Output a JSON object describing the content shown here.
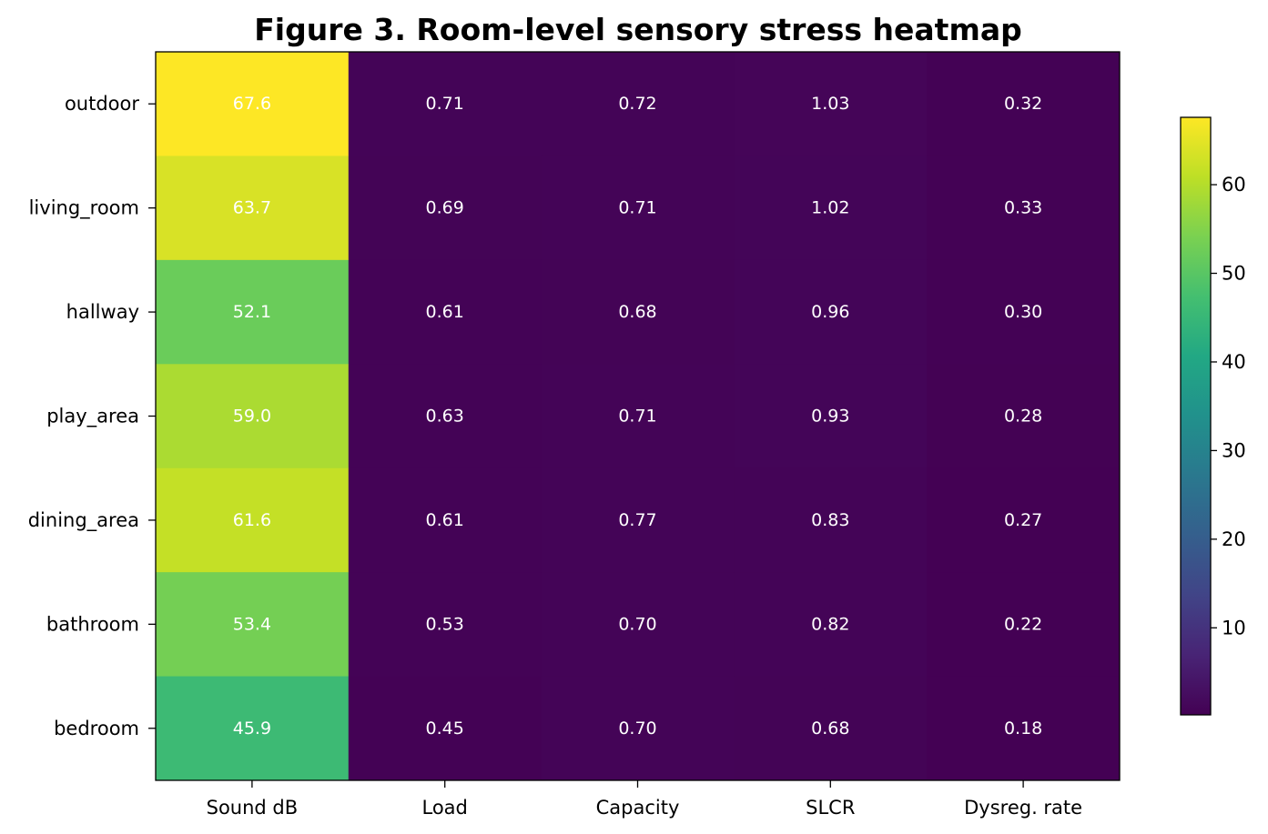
{
  "chart_data": {
    "type": "heatmap",
    "title": "Figure 3. Room-level sensory stress heatmap",
    "columns": [
      "Sound dB",
      "Load",
      "Capacity",
      "SLCR",
      "Dysreg. rate"
    ],
    "rows": [
      "outdoor",
      "living_room",
      "hallway",
      "play_area",
      "dining_area",
      "bathroom",
      "bedroom"
    ],
    "values": [
      [
        67.6,
        0.71,
        0.72,
        1.03,
        0.32
      ],
      [
        63.7,
        0.69,
        0.71,
        1.02,
        0.33
      ],
      [
        52.1,
        0.61,
        0.68,
        0.96,
        0.3
      ],
      [
        59.0,
        0.63,
        0.71,
        0.93,
        0.28
      ],
      [
        61.6,
        0.61,
        0.77,
        0.83,
        0.27
      ],
      [
        53.4,
        0.53,
        0.7,
        0.82,
        0.22
      ],
      [
        45.9,
        0.45,
        0.7,
        0.68,
        0.18
      ]
    ],
    "cell_labels": [
      [
        "67.6",
        "0.71",
        "0.72",
        "1.03",
        "0.32"
      ],
      [
        "63.7",
        "0.69",
        "0.71",
        "1.02",
        "0.33"
      ],
      [
        "52.1",
        "0.61",
        "0.68",
        "0.96",
        "0.30"
      ],
      [
        "59.0",
        "0.63",
        "0.71",
        "0.93",
        "0.28"
      ],
      [
        "61.6",
        "0.61",
        "0.77",
        "0.83",
        "0.27"
      ],
      [
        "53.4",
        "0.53",
        "0.70",
        "0.82",
        "0.22"
      ],
      [
        "45.9",
        "0.45",
        "0.70",
        "0.68",
        "0.18"
      ]
    ],
    "colormap": "viridis",
    "color_range": [
      0.18,
      67.6
    ],
    "colorbar": {
      "ticks": [
        10,
        20,
        30,
        40,
        50,
        60
      ],
      "tick_labels": [
        "10",
        "20",
        "30",
        "40",
        "50",
        "60"
      ],
      "placement": "right"
    },
    "annotation_color": "#ffffff"
  }
}
